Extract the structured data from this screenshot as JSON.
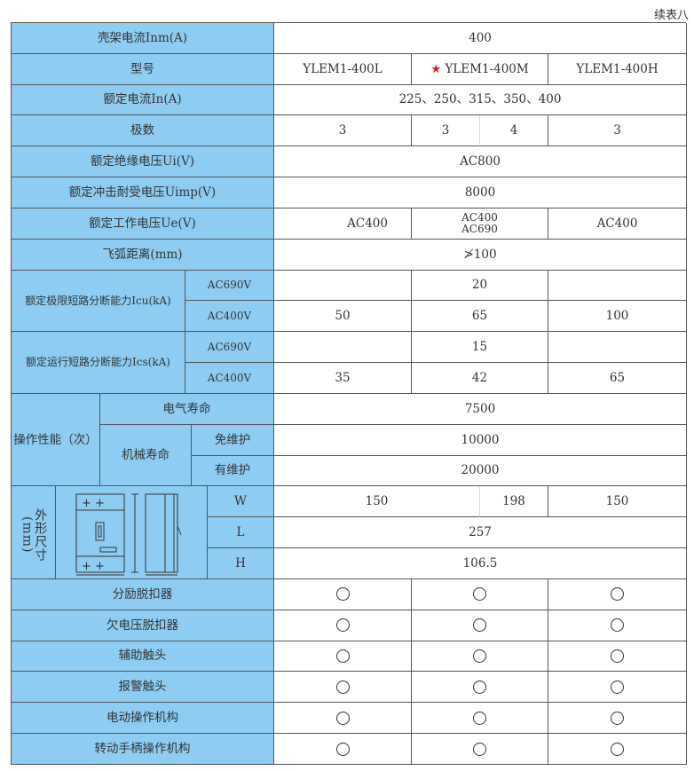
{
  "caption": "续表八",
  "frame_current": {
    "label": "壳架电流Inm(A)",
    "value": "400"
  },
  "model": {
    "label": "型号",
    "values": [
      "YLEM1-400L",
      "YLEM1-400M",
      "YLEM1-400H"
    ],
    "highlight_icon": "star-icon",
    "highlight_color": "#e02020"
  },
  "rated_current": {
    "label": "额定电流In(A)",
    "value": "225、250、315、350、400"
  },
  "poles": {
    "label": "极数",
    "values": [
      "3",
      "3",
      "4",
      "3"
    ]
  },
  "ui": {
    "label": "额定绝缘电压Ui(V)",
    "value": "AC800"
  },
  "uimp": {
    "label": "额定冲击耐受电压Uimp(V)",
    "value": "8000"
  },
  "ue": {
    "label": "额定工作电压Ue(V)",
    "values": [
      "AC400",
      "AC400",
      "AC690",
      "AC400"
    ]
  },
  "arc": {
    "label": "飞弧距离(mm)",
    "value": "≯100"
  },
  "icu": {
    "label": "额定极限短路分断能力Icu(kA)",
    "ac690": "AC690V",
    "ac690_value": "20",
    "ac400": "AC400V",
    "ac400_values": [
      "50",
      "65",
      "100"
    ]
  },
  "ics": {
    "label": "额定运行短路分断能力Ics(kA)",
    "ac690": "AC690V",
    "ac690_value": "15",
    "ac400": "AC400V",
    "ac400_values": [
      "35",
      "42",
      "65"
    ]
  },
  "ops": {
    "label": "操作性能（次）",
    "electric": "电气寿命",
    "electric_value": "7500",
    "mech": "机械寿命",
    "free": "免维护",
    "free_value": "10000",
    "maint": "有维护",
    "maint_value": "20000"
  },
  "dims": {
    "label": "外形尺寸(mm)",
    "w": "W",
    "w_values": [
      "150",
      "198",
      "150"
    ],
    "l": "L",
    "l_value": "257",
    "h": "H",
    "h_value": "106.5"
  },
  "accessories": [
    {
      "label": "分励脱扣器"
    },
    {
      "label": "欠电压脱扣器"
    },
    {
      "label": "辅助触头"
    },
    {
      "label": "报警触头"
    },
    {
      "label": "电动操作机构"
    },
    {
      "label": "转动手柄操作机构"
    }
  ],
  "accessory_mark_icon": "circle-icon",
  "colors": {
    "label_bg": "#8ecdf1",
    "border": "#555555"
  }
}
